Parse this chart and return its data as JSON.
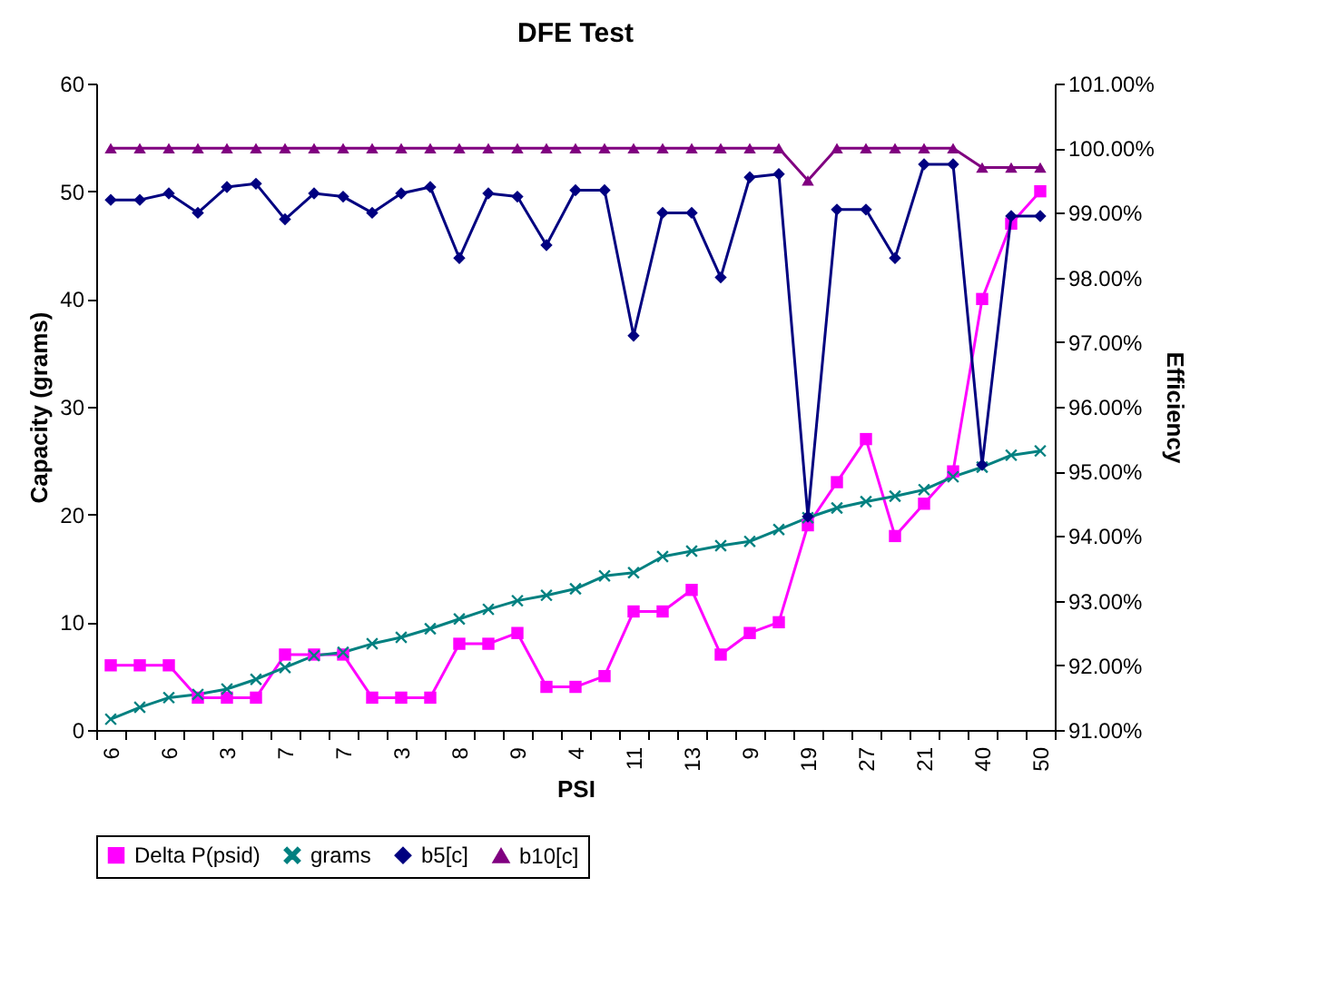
{
  "chart_data": {
    "type": "line",
    "title": "DFE Test",
    "xlabel": "PSI",
    "ylabel": "Capacity (grams)",
    "y2label": "Efficiency",
    "categories": [
      "6",
      null,
      "6",
      null,
      "3",
      null,
      "7",
      null,
      "7",
      null,
      "3",
      null,
      "8",
      null,
      "9",
      null,
      "4",
      null,
      "11",
      null,
      "13",
      null,
      "9",
      null,
      "19",
      null,
      "27",
      null,
      "21",
      null,
      "40",
      null,
      "50"
    ],
    "series": [
      {
        "name": "Delta P(psid)",
        "color": "#ff00ff",
        "marker": "square",
        "values": [
          6,
          6,
          6,
          3,
          3,
          3,
          7,
          7,
          7,
          3,
          3,
          3,
          8,
          8,
          9,
          4,
          4,
          5,
          11,
          11,
          13,
          7,
          9,
          10,
          19,
          23,
          27,
          18,
          21,
          24,
          40,
          47,
          50
        ]
      },
      {
        "name": "grams",
        "color": "#008080",
        "marker": "cross",
        "values": [
          1.0,
          2.1,
          3.0,
          3.3,
          3.8,
          4.7,
          5.8,
          6.9,
          7.2,
          8.0,
          8.6,
          9.4,
          10.3,
          11.2,
          12.0,
          12.5,
          13.1,
          14.3,
          14.6,
          16.1,
          16.6,
          17.1,
          17.5,
          18.6,
          19.7,
          20.6,
          21.2,
          21.7,
          22.3,
          23.5,
          24.4,
          25.5,
          25.9
        ]
      },
      {
        "name": "b5[c]",
        "color": "#000080",
        "marker": "diamond",
        "axis": "y2",
        "values": [
          99.2,
          99.2,
          99.3,
          99.0,
          99.4,
          99.45,
          98.9,
          99.3,
          99.25,
          99.0,
          99.3,
          99.4,
          98.3,
          99.3,
          99.25,
          98.5,
          99.35,
          99.35,
          97.1,
          99.0,
          99.0,
          98.0,
          99.55,
          99.6,
          94.3,
          99.05,
          99.05,
          98.3,
          99.75,
          99.75,
          95.1,
          98.95,
          98.95
        ]
      },
      {
        "name": "b10[c]",
        "color": "#800080",
        "marker": "triangle",
        "axis": "y2",
        "values": [
          100,
          100,
          100,
          100,
          100,
          100,
          100,
          100,
          100,
          100,
          100,
          100,
          100,
          100,
          100,
          100,
          100,
          100,
          100,
          100,
          100,
          100,
          100,
          100,
          99.5,
          100,
          100,
          100,
          100,
          100,
          99.7,
          99.7,
          99.7
        ]
      }
    ],
    "ylim": [
      0,
      60
    ],
    "yticks": [
      0,
      10,
      20,
      30,
      40,
      50,
      60
    ],
    "y2lim": [
      91,
      101
    ],
    "y2ticks": [
      {
        "value": 91,
        "label": "91.00%"
      },
      {
        "value": 92,
        "label": "92.00%"
      },
      {
        "value": 93,
        "label": "93.00%"
      },
      {
        "value": 94,
        "label": "94.00%"
      },
      {
        "value": 95,
        "label": "95.00%"
      },
      {
        "value": 96,
        "label": "96.00%"
      },
      {
        "value": 97,
        "label": "97.00%"
      },
      {
        "value": 98,
        "label": "98.00%"
      },
      {
        "value": 99,
        "label": "99.00%"
      },
      {
        "value": 100,
        "label": "100.00%"
      },
      {
        "value": 101,
        "label": "101.00%"
      }
    ],
    "legend": "bottom"
  }
}
